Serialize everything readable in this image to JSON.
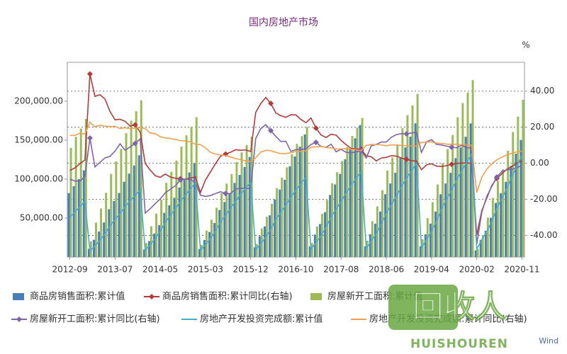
{
  "chart_data": {
    "type": "combo",
    "title": "国内房地产市场",
    "y2label": "%",
    "source": "Wind",
    "watermark": "回收人",
    "watermark_sub": "HUISHOUREN",
    "categories": [
      "2012-09",
      null,
      null,
      null,
      null,
      null,
      null,
      null,
      null,
      "2013-07",
      null,
      null,
      null,
      null,
      null,
      null,
      null,
      null,
      "2014-05",
      null,
      null,
      null,
      null,
      null,
      null,
      null,
      null,
      "2015-03",
      null,
      null,
      null,
      null,
      null,
      null,
      null,
      null,
      "2015-12",
      null,
      null,
      null,
      null,
      null,
      null,
      null,
      null,
      "2016-10",
      null,
      null,
      null,
      null,
      null,
      null,
      null,
      null,
      "2017-08",
      null,
      null,
      null,
      null,
      null,
      null,
      null,
      null,
      "2018-06",
      null,
      null,
      null,
      null,
      null,
      null,
      null,
      null,
      "2019-04",
      null,
      null,
      null,
      null,
      null,
      null,
      null,
      null,
      "2020-02",
      null,
      null,
      null,
      null,
      null,
      null,
      null,
      null,
      "2020-11"
    ],
    "ylim": [
      0,
      250000
    ],
    "yticks": [
      {
        "value": 50000,
        "label": "50,000.00"
      },
      {
        "value": 100000,
        "label": "100,000.00"
      },
      {
        "value": 150000,
        "label": "150,000.00"
      },
      {
        "value": 200000,
        "label": "200,000.00"
      }
    ],
    "y2lim": [
      -52,
      56
    ],
    "y2ticks": [
      {
        "value": -40,
        "label": "-40.00"
      },
      {
        "value": -20,
        "label": "-20.00"
      },
      {
        "value": 0,
        "label": "0.00"
      },
      {
        "value": 20,
        "label": "20.00"
      },
      {
        "value": 40,
        "label": "40.00"
      }
    ],
    "grid": "y2",
    "series": [
      {
        "name": "商品房销售面积:累计值",
        "type": "bar",
        "color": "#4a7ebb",
        "values": [
          82000,
          91000,
          100000,
          111300,
          10440,
          22190,
          32640,
          44390,
          61360,
          71800,
          82250,
          96610,
          107050,
          117500,
          130550,
          9650,
          20510,
          30160,
          41020,
          56710,
          66360,
          76010,
          89280,
          98930,
          108580,
          120650,
          10280,
          21840,
          32120,
          43690,
          60390,
          70670,
          80950,
          95090,
          105370,
          115650,
          128500,
          12590,
          26750,
          39340,
          53500,
          73950,
          86540,
          99130,
          116440,
          129030,
          141610,
          157350,
          13550,
          28800,
          42350,
          57600,
          79620,
          93170,
          106730,
          125360,
          138910,
          152470,
          169410,
          13730,
          29180,
          42910,
          58360,
          80680,
          94410,
          108140,
          127020,
          140760,
          154490,
          171650,
          13720,
          29160,
          42890,
          58330,
          80630,
          94360,
          108080,
          126950,
          140680,
          154400,
          171560,
          8500,
          21980,
          33670,
          50330,
          69400,
          81960,
          96560,
          117070,
          132570,
          150230
        ]
      },
      {
        "name": "商品房销售面积:累计同比(右轴)",
        "type": "line",
        "axis": "y2",
        "marker": "diamond",
        "color": "#b23b3b",
        "values": [
          -4.0,
          -2.6,
          -0.2,
          1.8,
          49.5,
          37.1,
          38.0,
          35.6,
          28.7,
          24.1,
          24.4,
          23.3,
          20.6,
          21.3,
          17.3,
          -0.1,
          -3.8,
          -6.9,
          -7.8,
          -6.0,
          -7.6,
          -8.3,
          -8.6,
          -8.9,
          -8.2,
          -7.6,
          -16.3,
          -9.2,
          -4.8,
          -0.2,
          3.9,
          5.1,
          6.1,
          7.5,
          7.2,
          7.4,
          6.5,
          28.2,
          33.1,
          36.5,
          33.2,
          27.9,
          26.4,
          25.5,
          26.9,
          26.8,
          24.3,
          22.5,
          25.1,
          19.5,
          15.7,
          14.3,
          16.1,
          15.6,
          12.7,
          10.3,
          8.2,
          7.9,
          7.7,
          4.1,
          3.6,
          1.3,
          2.9,
          3.3,
          4.2,
          4.0,
          2.9,
          2.2,
          1.4,
          1.3,
          -3.6,
          -0.9,
          -0.3,
          -1.6,
          -1.8,
          -1.3,
          -0.6,
          -0.1,
          0.1,
          0.2,
          -0.1,
          -39.9,
          -26.3,
          -19.3,
          -12.3,
          -8.4,
          -5.8,
          -3.3,
          -1.8,
          0.0,
          1.3
        ]
      },
      {
        "name": "房屋新开工面积:累计值",
        "type": "bar",
        "color": "#9bbb59",
        "values": [
          140100,
          154300,
          164900,
          177300,
          20120,
          44270,
          62370,
          82500,
          106640,
          122740,
          138830,
          158950,
          175050,
          187120,
          201210,
          17960,
          39510,
          55670,
          73630,
          95180,
          109550,
          123920,
          141880,
          156240,
          167020,
          179590,
          15450,
          33980,
          47880,
          63330,
          81860,
          94220,
          106570,
          122020,
          134380,
          143640,
          154450,
          16690,
          36720,
          51750,
          68440,
          88470,
          101830,
          115180,
          131870,
          145230,
          155240,
          166930,
          17870,
          39300,
          55380,
          73250,
          94690,
          108980,
          123270,
          141140,
          155430,
          166150,
          178650,
          20930,
          46050,
          64900,
          85830,
          110950,
          127700,
          144450,
          165380,
          182130,
          194690,
          209340,
          22720,
          49970,
          70420,
          93130,
          120390,
          138560,
          156740,
          179450,
          197620,
          211250,
          227150,
          10370,
          28130,
          50560,
          75940,
          97560,
          112600,
          136350,
          160560,
          180350,
          201940
        ]
      },
      {
        "name": "房屋新开工面积:累计同比(右轴)",
        "type": "line",
        "axis": "y2",
        "marker": "diamond",
        "color": "#7e64a8",
        "values": [
          -8.8,
          -9.8,
          -9.9,
          -7.3,
          14.0,
          -2.0,
          0.5,
          3.0,
          3.8,
          6.8,
          10.8,
          7.2,
          9.1,
          11.0,
          13.5,
          -27.6,
          -25.2,
          -22.4,
          -19.8,
          -16.4,
          -14.4,
          -12.5,
          -9.3,
          -8.8,
          -9.0,
          -10.7,
          -17.7,
          -18.4,
          -17.9,
          -16.8,
          -15.8,
          -16.8,
          -16.8,
          -14.3,
          -13.9,
          -14.0,
          -14.0,
          13.7,
          19.2,
          21.4,
          18.1,
          14.9,
          12.1,
          12.2,
          6.6,
          7.6,
          7.6,
          8.1,
          10.4,
          11.6,
          9.3,
          8.8,
          10.6,
          6.4,
          7.7,
          6.1,
          5.8,
          6.3,
          7.0,
          2.9,
          9.7,
          10.4,
          11.8,
          11.8,
          14.4,
          15.9,
          16.4,
          16.3,
          16.8,
          17.2,
          6.0,
          11.9,
          13.1,
          10.5,
          10.1,
          9.5,
          8.9,
          8.6,
          10.0,
          8.6,
          8.5,
          -44.9,
          -27.2,
          -18.4,
          -12.8,
          -7.6,
          -4.5,
          -3.6,
          -3.4,
          -2.6,
          -1.0
        ]
      },
      {
        "name": "房地产开发投资完成额:累计值",
        "type": "line",
        "color": "#4bacc6",
        "values": [
          51050,
          57830,
          64570,
          71800,
          7740,
          14620,
          21500,
          30100,
          40430,
          48170,
          55910,
          64510,
          72250,
          79130,
          86010,
          8550,
          16160,
          23760,
          33260,
          44670,
          53220,
          61770,
          71280,
          79830,
          87430,
          95040,
          8640,
          16320,
          23990,
          33590,
          45110,
          53750,
          62390,
          71980,
          80620,
          88300,
          95980,
          9230,
          17440,
          25650,
          35900,
          48210,
          57450,
          66680,
          76940,
          86170,
          94370,
          102580,
          9880,
          18670,
          27450,
          38430,
          51610,
          61490,
          71370,
          82350,
          92230,
          101010,
          109800,
          10820,
          20440,
          30070,
          42090,
          56520,
          67350,
          78170,
          90200,
          101020,
          110640,
          120260,
          11900,
          22470,
          33050,
          46270,
          62130,
          74030,
          85930,
          99150,
          111040,
          121620,
          132190,
          10120,
          21960,
          33100,
          45920,
          62780,
          75330,
          88450,
          103480,
          116560,
          130490
        ]
      },
      {
        "name": "房地产开发投资完成额:累计同比(右轴)",
        "type": "line",
        "axis": "y2",
        "color": "#f0a050",
        "values": [
          15.4,
          15.4,
          16.7,
          16.2,
          22.8,
          20.2,
          21.1,
          20.6,
          20.3,
          20.5,
          19.3,
          19.7,
          19.2,
          19.5,
          19.8,
          19.3,
          16.8,
          16.4,
          14.7,
          14.1,
          13.7,
          13.2,
          12.5,
          12.4,
          11.9,
          10.5,
          10.4,
          8.5,
          6.0,
          5.1,
          4.6,
          4.3,
          3.5,
          2.6,
          2.0,
          1.3,
          1.0,
          3.0,
          6.2,
          7.2,
          7.0,
          6.1,
          5.3,
          5.4,
          5.8,
          6.6,
          6.5,
          6.9,
          8.9,
          9.1,
          9.3,
          8.8,
          8.5,
          7.9,
          7.9,
          8.1,
          7.8,
          7.5,
          7.0,
          9.9,
          10.4,
          10.3,
          10.2,
          9.7,
          10.2,
          10.1,
          9.9,
          9.7,
          9.7,
          9.5,
          11.6,
          11.8,
          11.9,
          11.2,
          10.9,
          10.6,
          10.5,
          10.5,
          10.3,
          10.2,
          9.9,
          -16.3,
          -7.7,
          -3.3,
          -0.3,
          1.9,
          3.4,
          4.6,
          5.6,
          6.3,
          6.8
        ]
      }
    ]
  }
}
